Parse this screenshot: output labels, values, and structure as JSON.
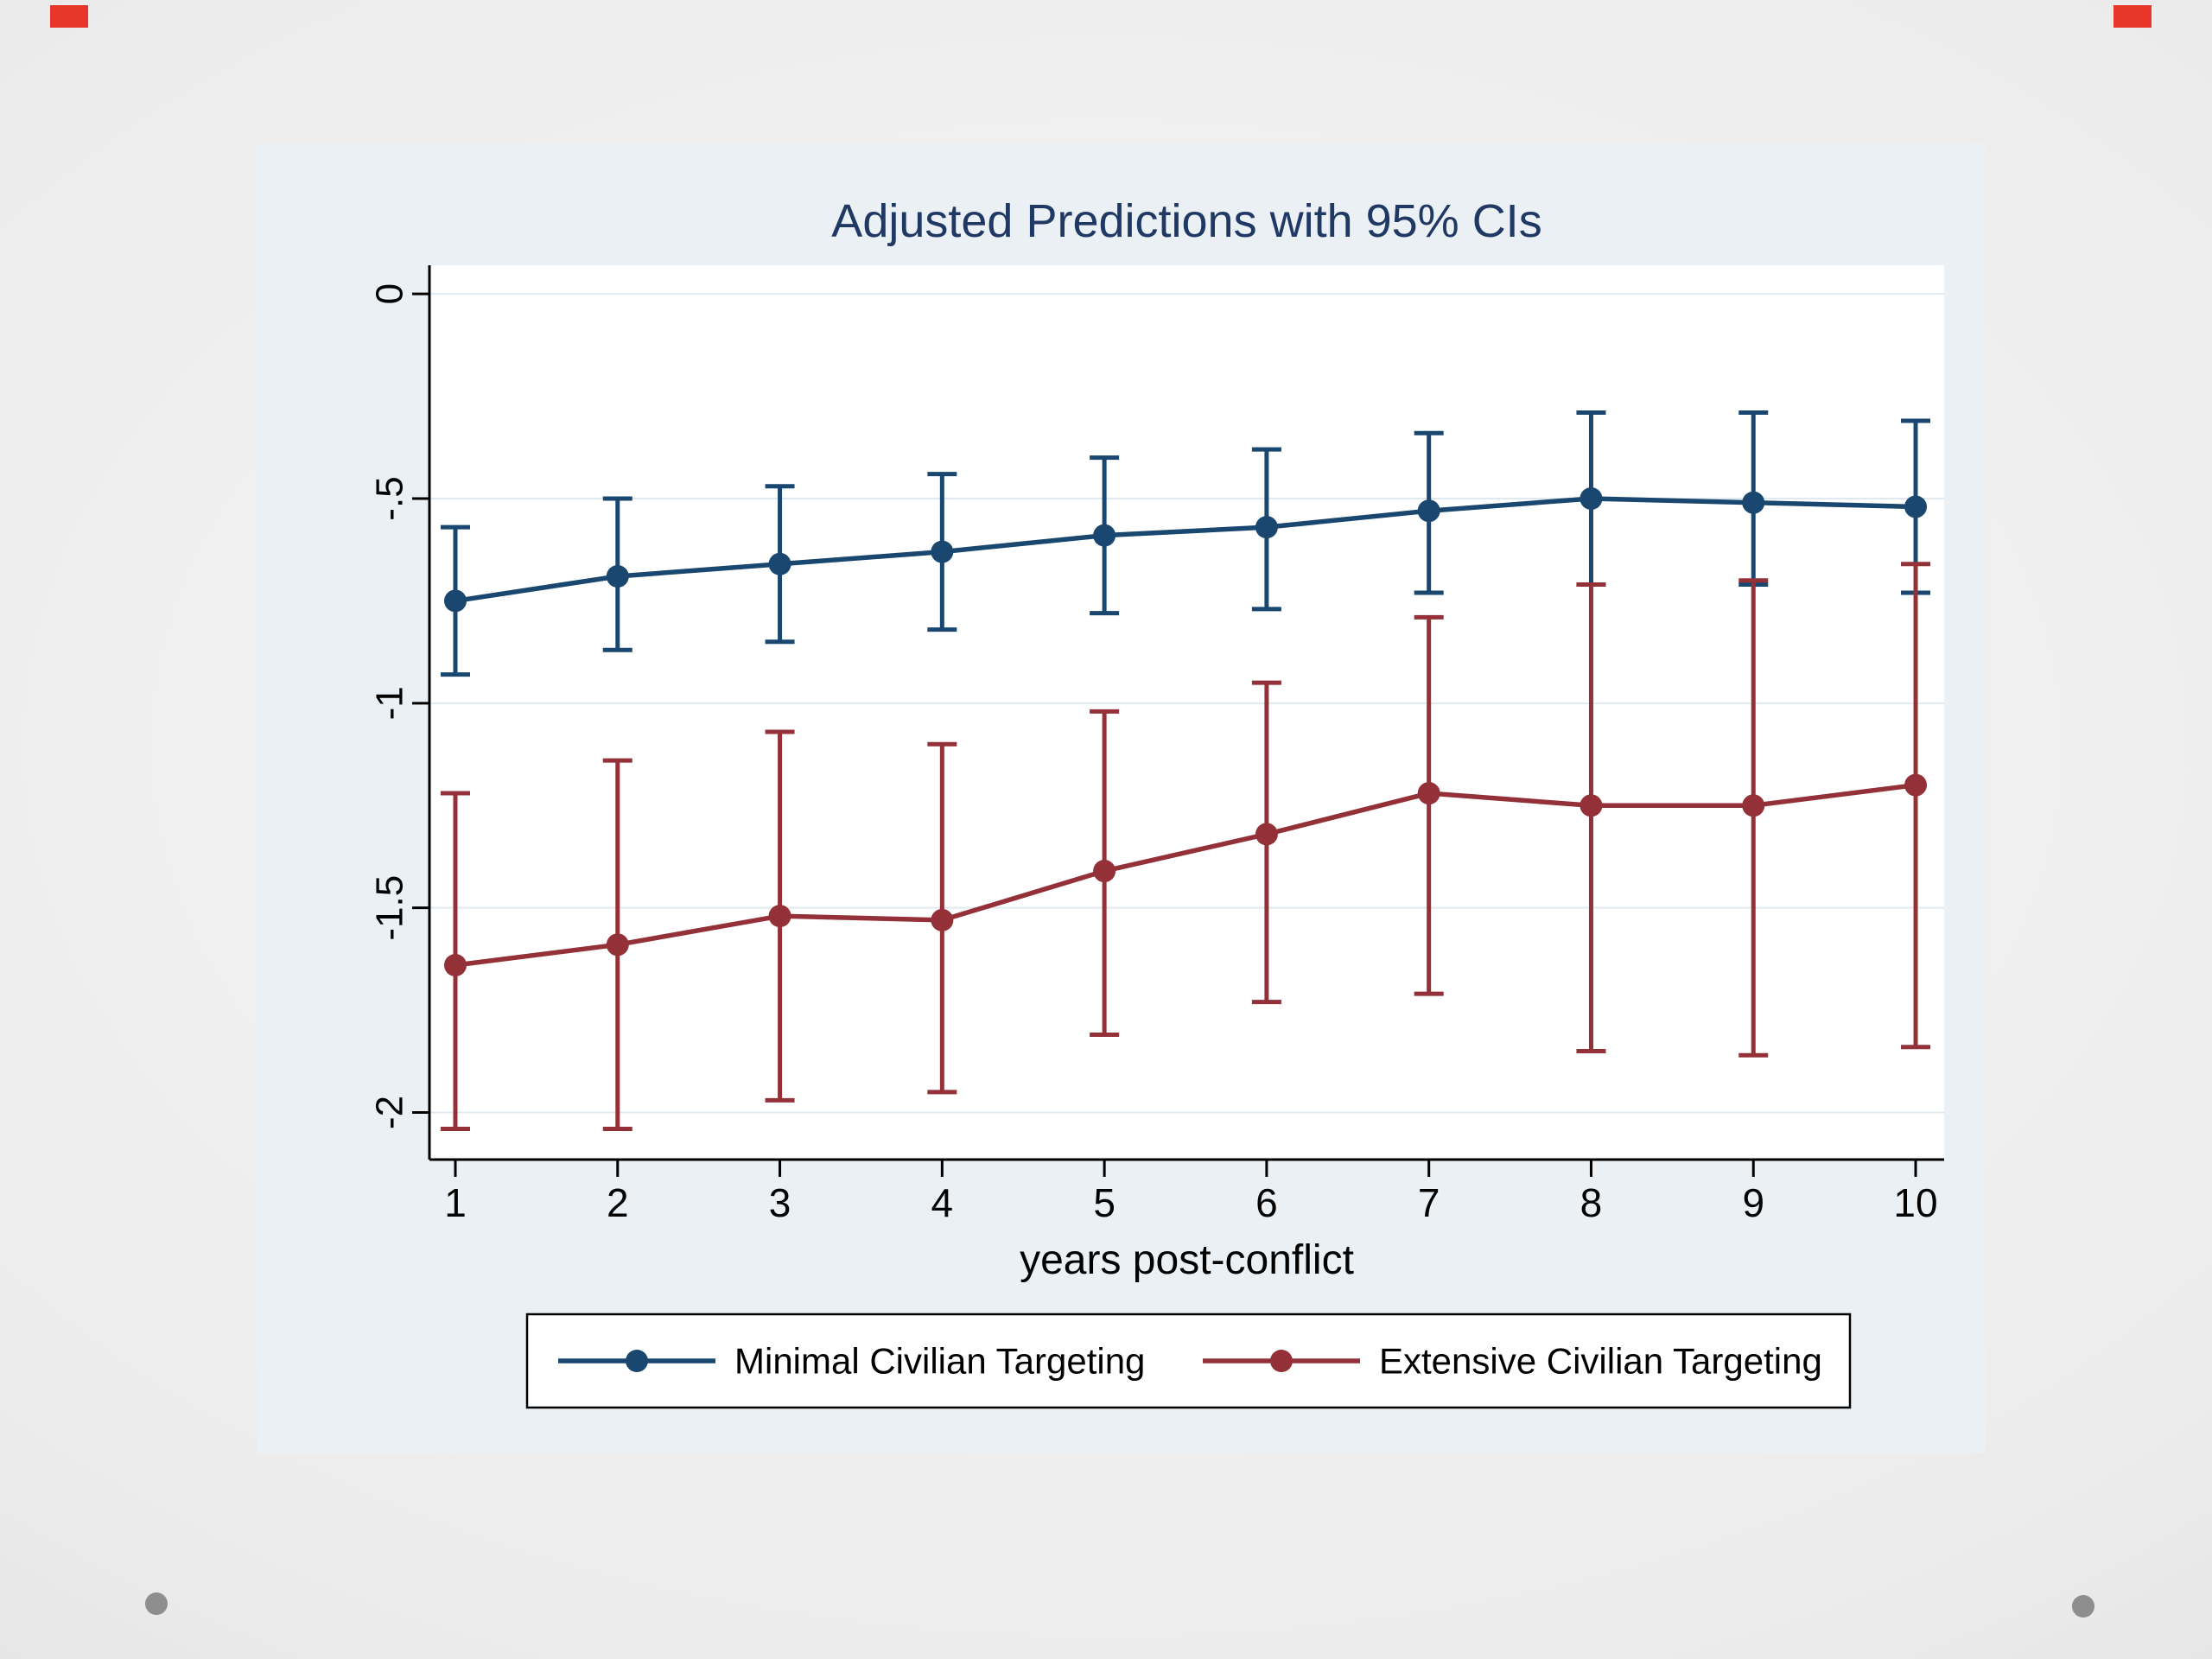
{
  "panel": {
    "background": "#eaf0f4",
    "plot_background": "#ffffff",
    "grid_color": "#dfe9ef",
    "axis_color": "#000000",
    "title_color": "#203864"
  },
  "chart_data": {
    "type": "line",
    "title": "Adjusted Predictions with 95% CIs",
    "xlabel": "years post-conflict",
    "ylabel": "",
    "x": [
      1,
      2,
      3,
      4,
      5,
      6,
      7,
      8,
      9,
      10
    ],
    "xtick_labels": [
      "1",
      "2",
      "3",
      "4",
      "5",
      "6",
      "7",
      "8",
      "9",
      "10"
    ],
    "yticks": [
      0,
      -0.5,
      -1,
      -1.5,
      -2
    ],
    "ytick_labels": [
      "0",
      "-.5",
      "-1",
      "-1.5",
      "-2"
    ],
    "ylim": [
      -2.115,
      0.07
    ],
    "grid": true,
    "error_bars": true,
    "legend_position": "bottom",
    "series": [
      {
        "name": "Minimal Civilian Targeting",
        "color": "#1a476f",
        "values": [
          -0.75,
          -0.69,
          -0.66,
          -0.63,
          -0.59,
          -0.57,
          -0.53,
          -0.5,
          -0.51,
          -0.52
        ],
        "ci_high": [
          -0.57,
          -0.5,
          -0.47,
          -0.44,
          -0.4,
          -0.38,
          -0.34,
          -0.29,
          -0.29,
          -0.31
        ],
        "ci_low": [
          -0.93,
          -0.87,
          -0.85,
          -0.82,
          -0.78,
          -0.77,
          -0.73,
          -0.71,
          -0.71,
          -0.73
        ]
      },
      {
        "name": "Extensive Civilian Targeting",
        "color": "#943138",
        "values": [
          -1.64,
          -1.59,
          -1.52,
          -1.53,
          -1.41,
          -1.32,
          -1.22,
          -1.25,
          -1.25,
          -1.2
        ],
        "ci_high": [
          -1.22,
          -1.14,
          -1.07,
          -1.1,
          -1.02,
          -0.95,
          -0.79,
          -0.71,
          -0.7,
          -0.66
        ],
        "ci_low": [
          -2.04,
          -2.04,
          -1.97,
          -1.95,
          -1.81,
          -1.73,
          -1.71,
          -1.85,
          -1.86,
          -1.84
        ]
      }
    ]
  }
}
